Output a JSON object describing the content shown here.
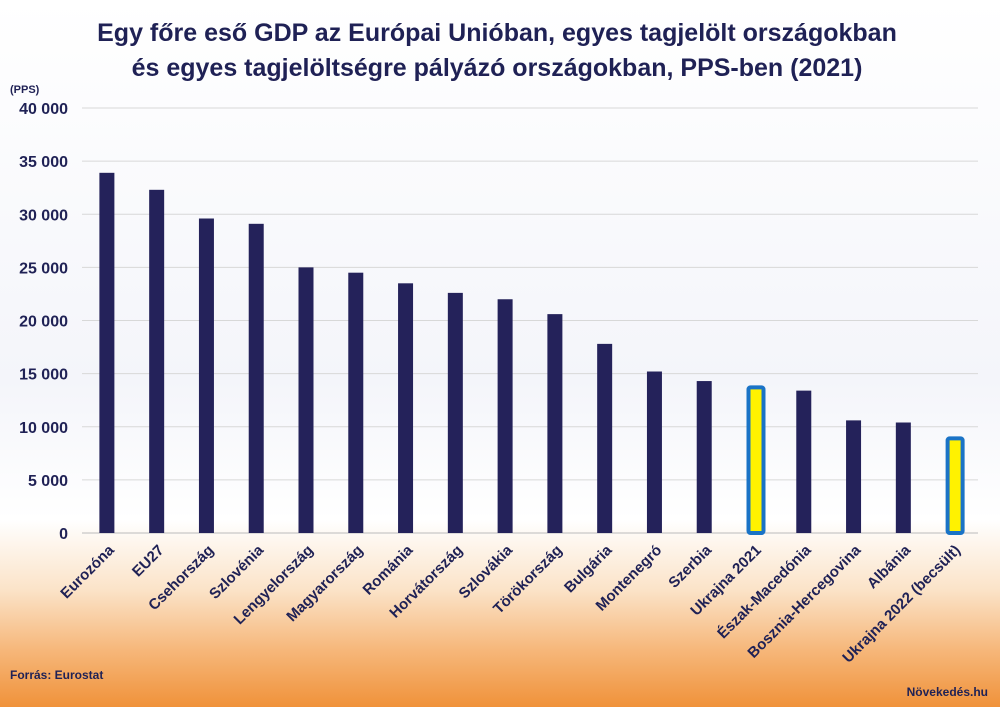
{
  "chart_data": {
    "type": "bar",
    "title_lines": [
      "Egy főre eső GDP az Európai Unióban, egyes tagjelölt országokban",
      "és egyes tagjelöltségre pályázó országokban, PPS-ben (2021)"
    ],
    "unit_label": "(PPS)",
    "ylim": [
      0,
      40000
    ],
    "yticks": [
      0,
      5000,
      10000,
      15000,
      20000,
      25000,
      30000,
      35000,
      40000
    ],
    "ytick_labels": [
      "0",
      "5 000",
      "10 000",
      "15 000",
      "20 000",
      "25 000",
      "30 000",
      "35 000",
      "40 000"
    ],
    "grid": true,
    "categories": [
      "Eurozóna",
      "EU27",
      "Csehország",
      "Szlovénia",
      "Lengyelország",
      "Magyarország",
      "Románia",
      "Horvátország",
      "Szlovákia",
      "Törökország",
      "Bulgária",
      "Montenegró",
      "Szerbia",
      "Ukrajna 2021",
      "Észak-Macedónia",
      "Bosznia-Hercegovina",
      "Albánia",
      "Ukrajna 2022 (becsült)"
    ],
    "values": [
      33900,
      32300,
      29600,
      29100,
      25000,
      24500,
      23500,
      22600,
      22000,
      20600,
      17800,
      15200,
      14300,
      13900,
      13400,
      10600,
      10400,
      9100
    ],
    "highlight": [
      false,
      false,
      false,
      false,
      false,
      false,
      false,
      false,
      false,
      false,
      false,
      false,
      false,
      true,
      false,
      false,
      false,
      true
    ],
    "colors": {
      "bar": "#24225a",
      "highlight_fill": "#fff200",
      "highlight_border": "#1a73c6",
      "grid": "#d8d8d8",
      "text": "#1f2155"
    }
  },
  "source": "Forrás: Eurostat",
  "brand": "Növekedés.hu"
}
